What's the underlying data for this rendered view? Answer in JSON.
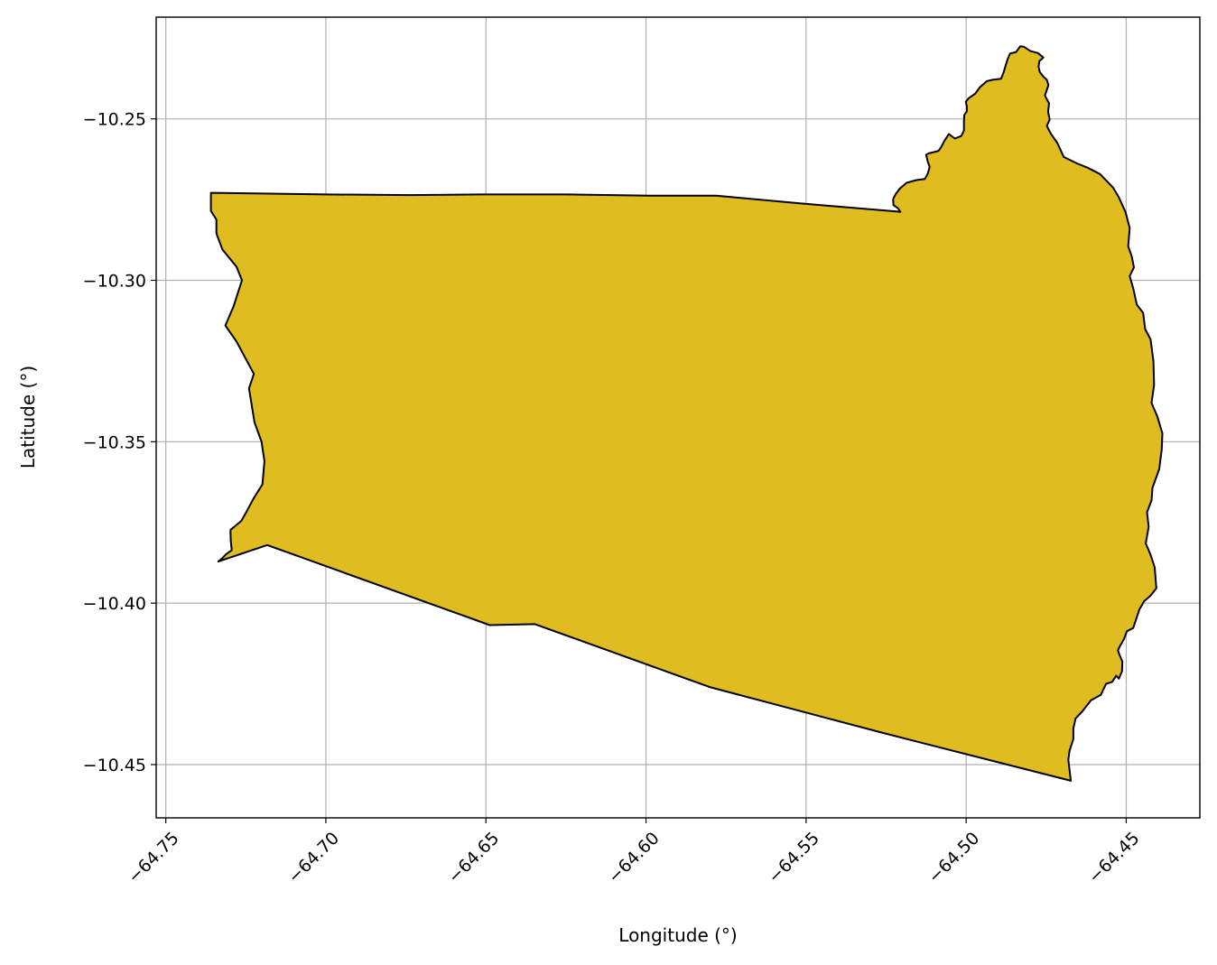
{
  "chart_data": {
    "type": "map",
    "xlabel": "Longitude (°)",
    "ylabel": "Latitude (°)",
    "xlim": [
      -64.753,
      -64.427
    ],
    "ylim": [
      -10.4665,
      -10.2185
    ],
    "grid": true,
    "x_ticks": [
      -64.75,
      -64.7,
      -64.65,
      -64.6,
      -64.55,
      -64.5,
      -64.45
    ],
    "x_tick_labels": [
      "−64.75",
      "−64.70",
      "−64.65",
      "−64.60",
      "−64.55",
      "−64.50",
      "−64.45"
    ],
    "y_ticks": [
      -10.25,
      -10.3,
      -10.35,
      -10.4,
      -10.45
    ],
    "y_tick_labels": [
      "−10.25",
      "−10.30",
      "−10.35",
      "−10.40",
      "−10.45"
    ],
    "regions": [
      {
        "fill": "#dfbd20",
        "edge": "#000000",
        "polygon": [
          [
            -64.7359,
            -10.2729
          ],
          [
            -64.7003,
            -10.2734
          ],
          [
            -64.6736,
            -10.2736
          ],
          [
            -64.6514,
            -10.2734
          ],
          [
            -64.6253,
            -10.2734
          ],
          [
            -64.5989,
            -10.2738
          ],
          [
            -64.5781,
            -10.2738
          ],
          [
            -64.5483,
            -10.2765
          ],
          [
            -64.5218,
            -10.2787
          ],
          [
            -64.5205,
            -10.2788
          ],
          [
            -64.5213,
            -10.2777
          ],
          [
            -64.5227,
            -10.2767
          ],
          [
            -64.5228,
            -10.2748
          ],
          [
            -64.522,
            -10.2733
          ],
          [
            -64.5207,
            -10.2716
          ],
          [
            -64.5186,
            -10.2698
          ],
          [
            -64.5157,
            -10.269
          ],
          [
            -64.5129,
            -10.2686
          ],
          [
            -64.512,
            -10.267
          ],
          [
            -64.5114,
            -10.2649
          ],
          [
            -64.512,
            -10.2632
          ],
          [
            -64.5125,
            -10.2611
          ],
          [
            -64.5117,
            -10.2607
          ],
          [
            -64.5105,
            -10.2604
          ],
          [
            -64.5086,
            -10.2599
          ],
          [
            -64.5079,
            -10.2589
          ],
          [
            -64.5066,
            -10.2565
          ],
          [
            -64.5054,
            -10.2547
          ],
          [
            -64.5035,
            -10.2561
          ],
          [
            -64.5015,
            -10.2553
          ],
          [
            -64.5007,
            -10.2536
          ],
          [
            -64.5007,
            -10.2512
          ],
          [
            -64.5006,
            -10.2488
          ],
          [
            -64.4998,
            -10.2477
          ],
          [
            -64.4998,
            -10.2462
          ],
          [
            -64.5001,
            -10.2447
          ],
          [
            -64.4992,
            -10.2436
          ],
          [
            -64.4972,
            -10.2422
          ],
          [
            -64.4957,
            -10.2402
          ],
          [
            -64.4935,
            -10.2383
          ],
          [
            -64.4917,
            -10.2379
          ],
          [
            -64.4891,
            -10.2376
          ],
          [
            -64.4883,
            -10.2356
          ],
          [
            -64.4876,
            -10.2333
          ],
          [
            -64.487,
            -10.2314
          ],
          [
            -64.4863,
            -10.2298
          ],
          [
            -64.4844,
            -10.2293
          ],
          [
            -64.4831,
            -10.2275
          ],
          [
            -64.4819,
            -10.2277
          ],
          [
            -64.4799,
            -10.229
          ],
          [
            -64.4776,
            -10.2296
          ],
          [
            -64.4759,
            -10.231
          ],
          [
            -64.4771,
            -10.2321
          ],
          [
            -64.4774,
            -10.2338
          ],
          [
            -64.477,
            -10.2355
          ],
          [
            -64.4759,
            -10.2369
          ],
          [
            -64.4748,
            -10.2379
          ],
          [
            -64.4743,
            -10.2395
          ],
          [
            -64.4754,
            -10.2428
          ],
          [
            -64.4741,
            -10.2452
          ],
          [
            -64.4744,
            -10.2478
          ],
          [
            -64.4739,
            -10.2502
          ],
          [
            -64.4748,
            -10.2522
          ],
          [
            -64.4736,
            -10.2545
          ],
          [
            -64.4715,
            -10.2575
          ],
          [
            -64.4695,
            -10.2618
          ],
          [
            -64.4654,
            -10.2638
          ],
          [
            -64.4621,
            -10.2651
          ],
          [
            -64.4582,
            -10.2671
          ],
          [
            -64.4541,
            -10.2713
          ],
          [
            -64.4523,
            -10.2743
          ],
          [
            -64.4502,
            -10.2789
          ],
          [
            -64.4489,
            -10.2838
          ],
          [
            -64.4494,
            -10.2895
          ],
          [
            -64.4483,
            -10.2925
          ],
          [
            -64.4476,
            -10.296
          ],
          [
            -64.4489,
            -10.2987
          ],
          [
            -64.4477,
            -10.3029
          ],
          [
            -64.4467,
            -10.3075
          ],
          [
            -64.4447,
            -10.3101
          ],
          [
            -64.4441,
            -10.3151
          ],
          [
            -64.4424,
            -10.3183
          ],
          [
            -64.4415,
            -10.3251
          ],
          [
            -64.4413,
            -10.3324
          ],
          [
            -64.4421,
            -10.338
          ],
          [
            -64.4403,
            -10.3421
          ],
          [
            -64.4387,
            -10.3474
          ],
          [
            -64.4389,
            -10.3523
          ],
          [
            -64.4397,
            -10.3585
          ],
          [
            -64.4418,
            -10.3643
          ],
          [
            -64.4421,
            -10.3682
          ],
          [
            -64.4435,
            -10.3718
          ],
          [
            -64.443,
            -10.3764
          ],
          [
            -64.4439,
            -10.3815
          ],
          [
            -64.4424,
            -10.385
          ],
          [
            -64.4411,
            -10.3889
          ],
          [
            -64.4406,
            -10.3954
          ],
          [
            -64.4425,
            -10.3978
          ],
          [
            -64.4444,
            -10.3994
          ],
          [
            -64.4459,
            -10.402
          ],
          [
            -64.4478,
            -10.4077
          ],
          [
            -64.4498,
            -10.4087
          ],
          [
            -64.4507,
            -10.4111
          ],
          [
            -64.4518,
            -10.413
          ],
          [
            -64.4526,
            -10.4146
          ],
          [
            -64.4521,
            -10.416
          ],
          [
            -64.4512,
            -10.4181
          ],
          [
            -64.4513,
            -10.4211
          ],
          [
            -64.4523,
            -10.4234
          ],
          [
            -64.4531,
            -10.4225
          ],
          [
            -64.4544,
            -10.4244
          ],
          [
            -64.4563,
            -10.425
          ],
          [
            -64.4579,
            -10.4284
          ],
          [
            -64.461,
            -10.4301
          ],
          [
            -64.4637,
            -10.4335
          ],
          [
            -64.4658,
            -10.4357
          ],
          [
            -64.4665,
            -10.4388
          ],
          [
            -64.4665,
            -10.4421
          ],
          [
            -64.4677,
            -10.4457
          ],
          [
            -64.4681,
            -10.4485
          ],
          [
            -64.4673,
            -10.455
          ],
          [
            -64.526,
            -10.4402
          ],
          [
            -64.5801,
            -10.426
          ],
          [
            -64.6347,
            -10.4065
          ],
          [
            -64.6488,
            -10.4068
          ],
          [
            -64.7183,
            -10.382
          ],
          [
            -64.7336,
            -10.3871
          ],
          [
            -64.7325,
            -10.3862
          ],
          [
            -64.7312,
            -10.3849
          ],
          [
            -64.7294,
            -10.3836
          ],
          [
            -64.7297,
            -10.3807
          ],
          [
            -64.7298,
            -10.3773
          ],
          [
            -64.7264,
            -10.3745
          ],
          [
            -64.7247,
            -10.3715
          ],
          [
            -64.7226,
            -10.3676
          ],
          [
            -64.7198,
            -10.3632
          ],
          [
            -64.7192,
            -10.356
          ],
          [
            -64.7201,
            -10.35
          ],
          [
            -64.7223,
            -10.344
          ],
          [
            -64.724,
            -10.3335
          ],
          [
            -64.7225,
            -10.329
          ],
          [
            -64.7279,
            -10.319
          ],
          [
            -64.7314,
            -10.314
          ],
          [
            -64.7288,
            -10.308
          ],
          [
            -64.7262,
            -10.3
          ],
          [
            -64.7279,
            -10.2958
          ],
          [
            -64.7323,
            -10.2905
          ],
          [
            -64.7342,
            -10.2855
          ],
          [
            -64.7342,
            -10.2812
          ],
          [
            -64.7359,
            -10.2785
          ]
        ]
      }
    ]
  }
}
